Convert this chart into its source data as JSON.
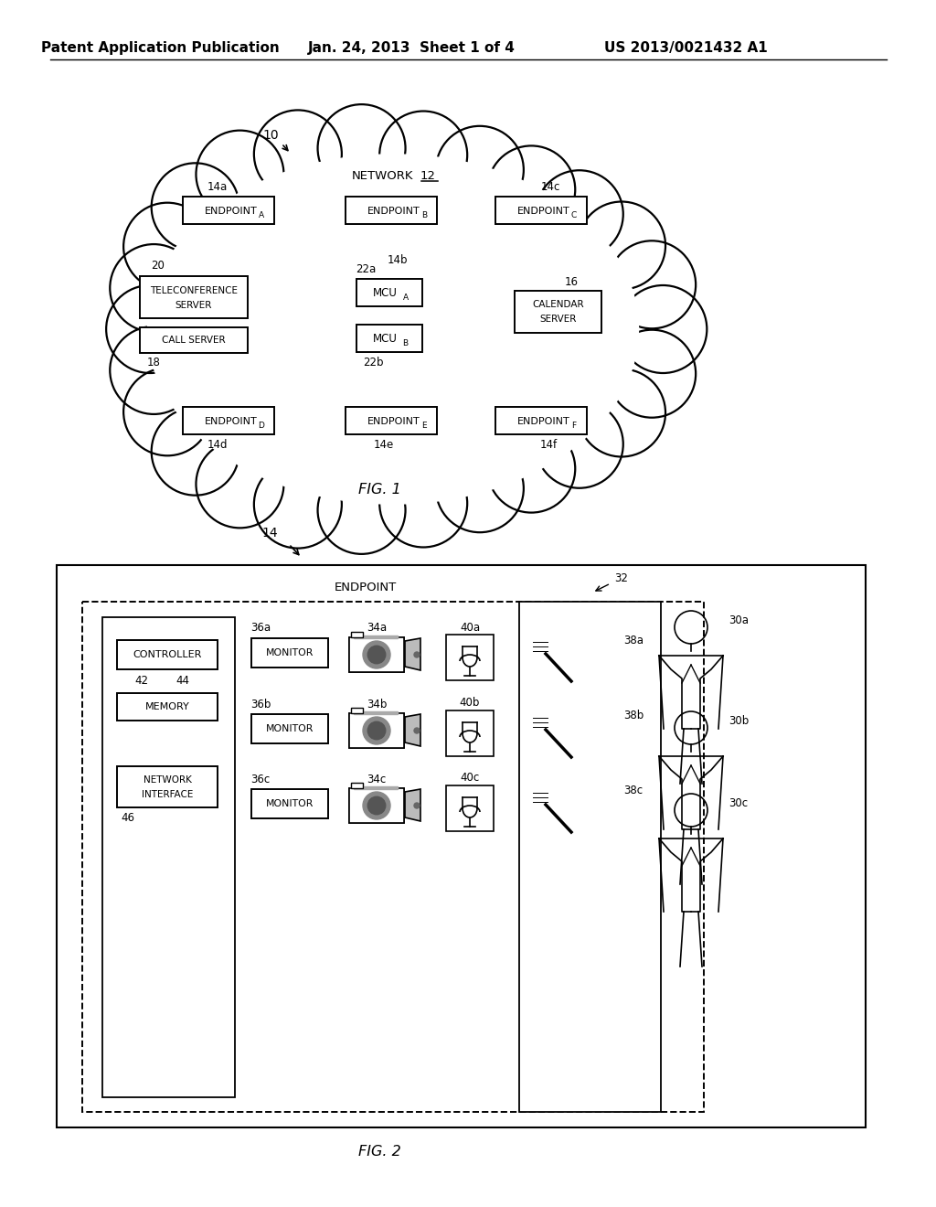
{
  "bg_color": "#ffffff",
  "header_left": "Patent Application Publication",
  "header_mid": "Jan. 24, 2013  Sheet 1 of 4",
  "header_right": "US 2013/0021432 A1"
}
